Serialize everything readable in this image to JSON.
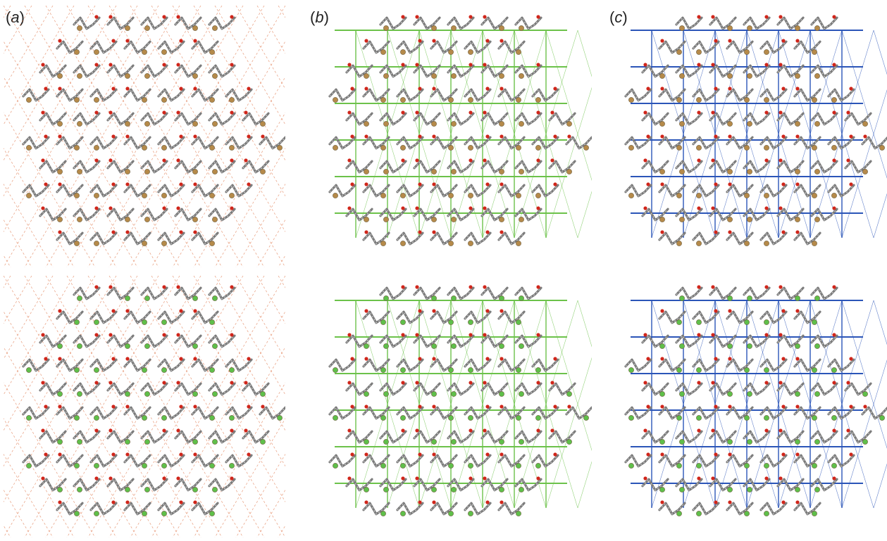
{
  "figure": {
    "panels": [
      {
        "id": "a",
        "label": "a",
        "network": "none",
        "line_color": "#e07a4f"
      },
      {
        "id": "b",
        "label": "b",
        "network": "grid",
        "line_color": "#6cc24a"
      },
      {
        "id": "c",
        "label": "c",
        "network": "grid",
        "line_color": "#2b55b8"
      }
    ],
    "rows": [
      {
        "id": "top",
        "halogen_color": "#b58a4a",
        "halogen": "Br"
      },
      {
        "id": "bottom",
        "halogen_color": "#5fbf4a",
        "halogen": "Cl"
      }
    ],
    "atom_colors": {
      "carbon": "#7a7a7a",
      "hydrogen": "#d8d8d8",
      "oxygen": "#d0261b"
    }
  }
}
